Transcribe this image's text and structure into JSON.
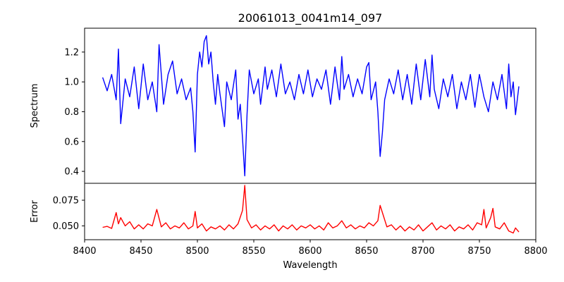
{
  "chart_data": {
    "type": "line",
    "title": "20061013_0041m14_097",
    "xlabel": "Wavelength",
    "x_range": [
      8416,
      8785
    ],
    "xlim": [
      8400,
      8800
    ],
    "xticks": [
      "8400",
      "8450",
      "8500",
      "8550",
      "8600",
      "8650",
      "8700",
      "8750",
      "8800"
    ],
    "grid": false,
    "panels": [
      {
        "name": "spectrum",
        "ylabel": "Spectrum",
        "ylim": [
          0.32,
          1.36
        ],
        "yticks": [
          "0.4",
          "0.6",
          "0.8",
          "1.0",
          "1.2"
        ],
        "color": "#0000ff",
        "series": [
          {
            "points": [
              [
                8416,
                1.03
              ],
              [
                8420,
                0.94
              ],
              [
                8424,
                1.05
              ],
              [
                8428,
                0.88
              ],
              [
                8430,
                1.22
              ],
              [
                8432,
                0.72
              ],
              [
                8436,
                1.02
              ],
              [
                8440,
                0.9
              ],
              [
                8444,
                1.1
              ],
              [
                8448,
                0.82
              ],
              [
                8452,
                1.12
              ],
              [
                8456,
                0.88
              ],
              [
                8460,
                1.0
              ],
              [
                8464,
                0.8
              ],
              [
                8466,
                1.25
              ],
              [
                8470,
                0.85
              ],
              [
                8474,
                1.05
              ],
              [
                8478,
                1.14
              ],
              [
                8482,
                0.92
              ],
              [
                8486,
                1.02
              ],
              [
                8490,
                0.88
              ],
              [
                8494,
                0.96
              ],
              [
                8496,
                0.8
              ],
              [
                8498,
                0.53
              ],
              [
                8500,
                1.05
              ],
              [
                8502,
                1.2
              ],
              [
                8504,
                1.1
              ],
              [
                8506,
                1.27
              ],
              [
                8508,
                1.31
              ],
              [
                8510,
                1.12
              ],
              [
                8512,
                1.2
              ],
              [
                8514,
                1.0
              ],
              [
                8516,
                0.85
              ],
              [
                8518,
                1.05
              ],
              [
                8520,
                0.92
              ],
              [
                8524,
                0.7
              ],
              [
                8526,
                1.0
              ],
              [
                8530,
                0.88
              ],
              [
                8534,
                1.08
              ],
              [
                8536,
                0.75
              ],
              [
                8538,
                0.85
              ],
              [
                8540,
                0.62
              ],
              [
                8542,
                0.37
              ],
              [
                8544,
                0.78
              ],
              [
                8546,
                1.08
              ],
              [
                8550,
                0.92
              ],
              [
                8554,
                1.02
              ],
              [
                8556,
                0.85
              ],
              [
                8560,
                1.1
              ],
              [
                8562,
                0.95
              ],
              [
                8566,
                1.08
              ],
              [
                8570,
                0.9
              ],
              [
                8574,
                1.12
              ],
              [
                8578,
                0.92
              ],
              [
                8582,
                1.0
              ],
              [
                8586,
                0.88
              ],
              [
                8590,
                1.05
              ],
              [
                8594,
                0.92
              ],
              [
                8598,
                1.08
              ],
              [
                8602,
                0.9
              ],
              [
                8606,
                1.02
              ],
              [
                8610,
                0.95
              ],
              [
                8614,
                1.08
              ],
              [
                8618,
                0.85
              ],
              [
                8622,
                1.1
              ],
              [
                8626,
                0.88
              ],
              [
                8628,
                1.17
              ],
              [
                8630,
                0.95
              ],
              [
                8634,
                1.05
              ],
              [
                8638,
                0.9
              ],
              [
                8642,
                1.02
              ],
              [
                8646,
                0.92
              ],
              [
                8650,
                1.1
              ],
              [
                8652,
                1.13
              ],
              [
                8654,
                0.88
              ],
              [
                8658,
                1.0
              ],
              [
                8660,
                0.8
              ],
              [
                8662,
                0.5
              ],
              [
                8664,
                0.66
              ],
              [
                8666,
                0.88
              ],
              [
                8670,
                1.02
              ],
              [
                8674,
                0.92
              ],
              [
                8678,
                1.08
              ],
              [
                8682,
                0.88
              ],
              [
                8686,
                1.05
              ],
              [
                8690,
                0.85
              ],
              [
                8694,
                1.12
              ],
              [
                8698,
                0.88
              ],
              [
                8702,
                1.15
              ],
              [
                8706,
                0.9
              ],
              [
                8708,
                1.18
              ],
              [
                8710,
                0.95
              ],
              [
                8714,
                0.82
              ],
              [
                8718,
                1.02
              ],
              [
                8722,
                0.9
              ],
              [
                8726,
                1.05
              ],
              [
                8730,
                0.82
              ],
              [
                8734,
                1.0
              ],
              [
                8738,
                0.88
              ],
              [
                8742,
                1.05
              ],
              [
                8746,
                0.83
              ],
              [
                8750,
                1.05
              ],
              [
                8754,
                0.9
              ],
              [
                8758,
                0.8
              ],
              [
                8762,
                1.0
              ],
              [
                8766,
                0.88
              ],
              [
                8770,
                1.05
              ],
              [
                8774,
                0.82
              ],
              [
                8776,
                1.12
              ],
              [
                8778,
                0.9
              ],
              [
                8780,
                1.0
              ],
              [
                8782,
                0.78
              ],
              [
                8785,
                0.97
              ]
            ]
          }
        ]
      },
      {
        "name": "error",
        "ylabel": "Error",
        "ylim": [
          0.0365,
          0.0915
        ],
        "yticks": [
          "0.050",
          "0.075"
        ],
        "color": "#ff0000",
        "series": [
          {
            "points": [
              [
                8416,
                0.0485
              ],
              [
                8420,
                0.0495
              ],
              [
                8424,
                0.0475
              ],
              [
                8428,
                0.063
              ],
              [
                8430,
                0.052
              ],
              [
                8432,
                0.058
              ],
              [
                8436,
                0.05
              ],
              [
                8440,
                0.054
              ],
              [
                8444,
                0.047
              ],
              [
                8448,
                0.051
              ],
              [
                8452,
                0.047
              ],
              [
                8456,
                0.052
              ],
              [
                8460,
                0.05
              ],
              [
                8464,
                0.066
              ],
              [
                8468,
                0.049
              ],
              [
                8472,
                0.053
              ],
              [
                8476,
                0.047
              ],
              [
                8480,
                0.05
              ],
              [
                8484,
                0.048
              ],
              [
                8488,
                0.053
              ],
              [
                8492,
                0.047
              ],
              [
                8496,
                0.05
              ],
              [
                8498,
                0.064
              ],
              [
                8500,
                0.048
              ],
              [
                8504,
                0.052
              ],
              [
                8508,
                0.045
              ],
              [
                8512,
                0.049
              ],
              [
                8516,
                0.047
              ],
              [
                8520,
                0.05
              ],
              [
                8524,
                0.046
              ],
              [
                8528,
                0.051
              ],
              [
                8532,
                0.047
              ],
              [
                8536,
                0.052
              ],
              [
                8540,
                0.065
              ],
              [
                8542,
                0.0895
              ],
              [
                8544,
                0.056
              ],
              [
                8548,
                0.048
              ],
              [
                8552,
                0.051
              ],
              [
                8556,
                0.046
              ],
              [
                8560,
                0.05
              ],
              [
                8564,
                0.047
              ],
              [
                8568,
                0.051
              ],
              [
                8572,
                0.045
              ],
              [
                8576,
                0.05
              ],
              [
                8580,
                0.047
              ],
              [
                8584,
                0.051
              ],
              [
                8588,
                0.046
              ],
              [
                8592,
                0.05
              ],
              [
                8596,
                0.048
              ],
              [
                8600,
                0.051
              ],
              [
                8604,
                0.047
              ],
              [
                8608,
                0.05
              ],
              [
                8612,
                0.046
              ],
              [
                8616,
                0.053
              ],
              [
                8620,
                0.048
              ],
              [
                8624,
                0.05
              ],
              [
                8628,
                0.055
              ],
              [
                8632,
                0.048
              ],
              [
                8636,
                0.051
              ],
              [
                8640,
                0.047
              ],
              [
                8644,
                0.05
              ],
              [
                8648,
                0.048
              ],
              [
                8652,
                0.053
              ],
              [
                8656,
                0.05
              ],
              [
                8660,
                0.055
              ],
              [
                8662,
                0.07
              ],
              [
                8664,
                0.063
              ],
              [
                8668,
                0.049
              ],
              [
                8672,
                0.051
              ],
              [
                8676,
                0.046
              ],
              [
                8680,
                0.05
              ],
              [
                8684,
                0.045
              ],
              [
                8688,
                0.049
              ],
              [
                8692,
                0.046
              ],
              [
                8696,
                0.051
              ],
              [
                8700,
                0.045
              ],
              [
                8704,
                0.049
              ],
              [
                8708,
                0.053
              ],
              [
                8712,
                0.046
              ],
              [
                8716,
                0.05
              ],
              [
                8720,
                0.047
              ],
              [
                8724,
                0.051
              ],
              [
                8728,
                0.045
              ],
              [
                8732,
                0.049
              ],
              [
                8736,
                0.047
              ],
              [
                8740,
                0.051
              ],
              [
                8744,
                0.046
              ],
              [
                8748,
                0.053
              ],
              [
                8752,
                0.051
              ],
              [
                8754,
                0.066
              ],
              [
                8756,
                0.048
              ],
              [
                8760,
                0.058
              ],
              [
                8762,
                0.067
              ],
              [
                8764,
                0.049
              ],
              [
                8768,
                0.047
              ],
              [
                8772,
                0.053
              ],
              [
                8776,
                0.045
              ],
              [
                8780,
                0.043
              ],
              [
                8782,
                0.048
              ],
              [
                8785,
                0.044
              ]
            ]
          }
        ]
      }
    ]
  }
}
